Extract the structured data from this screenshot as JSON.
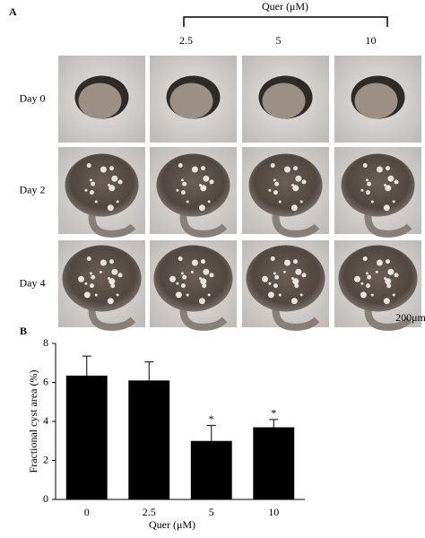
{
  "panel_a": {
    "label": "A",
    "treatment": "Quer (μM)",
    "columns": [
      "2.5",
      "5",
      "10"
    ],
    "rows": [
      "Day 0",
      "Day 2",
      "Day 4"
    ],
    "scale_bar": "200μm"
  },
  "chart_data": {
    "type": "bar",
    "panel_label": "B",
    "y_label": "Fractional cyst area (%)",
    "x_label": "Quer (μM)",
    "categories": [
      "0",
      "2.5",
      "5",
      "10"
    ],
    "values": [
      6.35,
      6.1,
      3.0,
      3.7
    ],
    "errors": [
      1.0,
      0.95,
      0.8,
      0.4
    ],
    "significance": [
      null,
      null,
      "*",
      "*"
    ],
    "color": "#000000",
    "ylim": [
      0,
      8
    ],
    "yticks": [
      0,
      2,
      4,
      6,
      8
    ],
    "grid": false
  }
}
